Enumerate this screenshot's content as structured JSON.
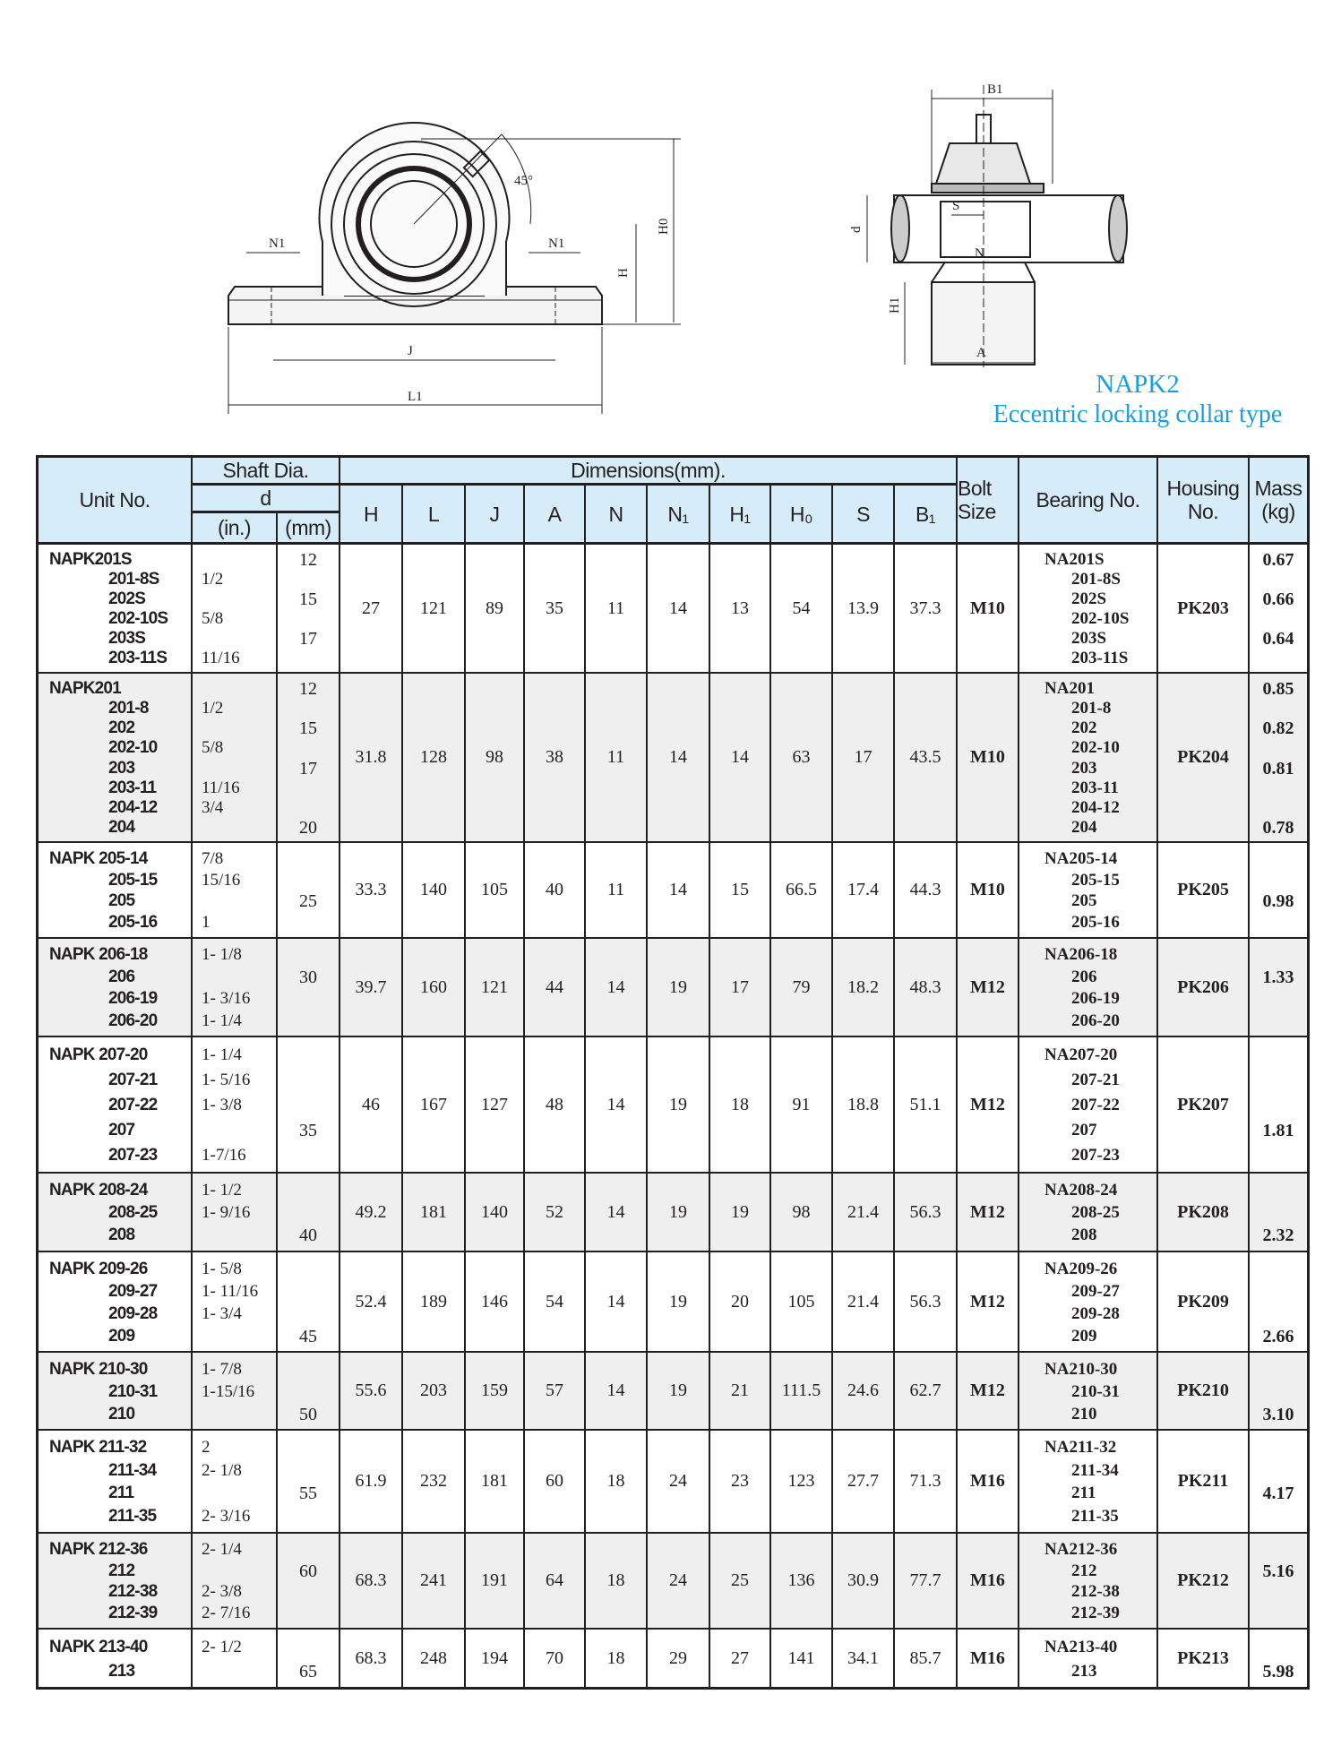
{
  "title": {
    "model": "NAPK2",
    "subtitle": "Eccentric locking collar type"
  },
  "drawings": {
    "front": {
      "n1_left": "N1",
      "n1_right": "N1",
      "angle": "45°",
      "j": "J",
      "l1": "L1",
      "h": "H",
      "h0": "H0"
    },
    "side": {
      "b1": "B1",
      "s": "S",
      "d": "d",
      "n": "N",
      "h1": "H1",
      "a": "A"
    }
  },
  "colors": {
    "accent": "#1a9ee0",
    "header_bg": "#d6ecf8",
    "alt_row_bg": "#efefef",
    "border": "#231f20"
  },
  "table": {
    "headers": {
      "unit_no": "Unit No.",
      "shaft_dia": "Shaft Dia.",
      "d": "d",
      "inch": "(in.)",
      "mm": "(mm)",
      "dimensions": "Dimensions(mm).",
      "dims": [
        "H",
        "L",
        "J",
        "A",
        "N",
        "N₁",
        "H₁",
        "H₀",
        "S",
        "B₁"
      ],
      "bolt": "Bolt Size",
      "bearing": "Bearing No.",
      "housing": "Housing No.",
      "mass": "Mass (kg)"
    },
    "rows": [
      {
        "units": [
          "NAPK201S",
          "201-8S",
          "202S",
          "202-10S",
          "203S",
          "203-11S"
        ],
        "inch": [
          "",
          "1/2",
          "",
          "5/8",
          "",
          "11/16"
        ],
        "mm": [
          "12",
          "",
          "15",
          "",
          "17",
          ""
        ],
        "dims": [
          "27",
          "121",
          "89",
          "35",
          "11",
          "14",
          "13",
          "54",
          "13.9",
          "37.3"
        ],
        "bolt": "M10",
        "bearing": [
          "NA201S",
          "201-8S",
          "202S",
          "202-10S",
          "203S",
          "203-11S"
        ],
        "housing": "PK203",
        "mass": [
          "0.67",
          "",
          "0.66",
          "",
          "0.64",
          ""
        ]
      },
      {
        "units": [
          "NAPK201",
          "201-8",
          "202",
          "202-10",
          "203",
          "203-11",
          "204-12",
          "204"
        ],
        "inch": [
          "",
          "1/2",
          "",
          "5/8",
          "",
          "11/16",
          "3/4",
          ""
        ],
        "mm": [
          "12",
          "",
          "15",
          "",
          "17",
          "",
          "",
          "20"
        ],
        "dims": [
          "31.8",
          "128",
          "98",
          "38",
          "11",
          "14",
          "14",
          "63",
          "17",
          "43.5"
        ],
        "bolt": "M10",
        "bearing": [
          "NA201",
          "201-8",
          "202",
          "202-10",
          "203",
          "203-11",
          "204-12",
          "204"
        ],
        "housing": "PK204",
        "mass": [
          "0.85",
          "",
          "0.82",
          "",
          "0.81",
          "",
          "",
          "0.78"
        ]
      },
      {
        "units": [
          "NAPK 205-14",
          "205-15",
          "205",
          "205-16"
        ],
        "inch": [
          "7/8",
          "15/16",
          "",
          "1"
        ],
        "mm": [
          "",
          "",
          "25",
          ""
        ],
        "dims": [
          "33.3",
          "140",
          "105",
          "40",
          "11",
          "14",
          "15",
          "66.5",
          "17.4",
          "44.3"
        ],
        "bolt": "M10",
        "bearing": [
          "NA205-14",
          "205-15",
          "205",
          "205-16"
        ],
        "housing": "PK205",
        "mass": [
          "",
          "",
          "0.98",
          ""
        ]
      },
      {
        "units": [
          "NAPK 206-18",
          "206",
          "206-19",
          "206-20"
        ],
        "inch": [
          "1- 1/8",
          "",
          "1- 3/16",
          "1- 1/4"
        ],
        "mm": [
          "",
          "30",
          "",
          ""
        ],
        "dims": [
          "39.7",
          "160",
          "121",
          "44",
          "14",
          "19",
          "17",
          "79",
          "18.2",
          "48.3"
        ],
        "bolt": "M12",
        "bearing": [
          "NA206-18",
          "206",
          "206-19",
          "206-20"
        ],
        "housing": "PK206",
        "mass": [
          "",
          "1.33",
          "",
          ""
        ]
      },
      {
        "units": [
          "NAPK 207-20",
          "207-21",
          "207-22",
          "207",
          "207-23"
        ],
        "inch": [
          "1- 1/4",
          "1- 5/16",
          "1- 3/8",
          "",
          "1-7/16"
        ],
        "mm": [
          "",
          "",
          "",
          "35",
          ""
        ],
        "dims": [
          "46",
          "167",
          "127",
          "48",
          "14",
          "19",
          "18",
          "91",
          "18.8",
          "51.1"
        ],
        "bolt": "M12",
        "bearing": [
          "NA207-20",
          "207-21",
          "207-22",
          "207",
          "207-23"
        ],
        "housing": "PK207",
        "mass": [
          "",
          "",
          "",
          "1.81",
          ""
        ]
      },
      {
        "units": [
          "NAPK 208-24",
          "208-25",
          "208"
        ],
        "inch": [
          "1- 1/2",
          "1- 9/16",
          ""
        ],
        "mm": [
          "",
          "",
          "40"
        ],
        "dims": [
          "49.2",
          "181",
          "140",
          "52",
          "14",
          "19",
          "19",
          "98",
          "21.4",
          "56.3"
        ],
        "bolt": "M12",
        "bearing": [
          "NA208-24",
          "208-25",
          "208"
        ],
        "housing": "PK208",
        "mass": [
          "",
          "",
          "2.32"
        ]
      },
      {
        "units": [
          "NAPK 209-26",
          "209-27",
          "209-28",
          "209"
        ],
        "inch": [
          "1- 5/8",
          "1- 11/16",
          "1- 3/4",
          ""
        ],
        "mm": [
          "",
          "",
          "",
          "45"
        ],
        "dims": [
          "52.4",
          "189",
          "146",
          "54",
          "14",
          "19",
          "20",
          "105",
          "21.4",
          "56.3"
        ],
        "bolt": "M12",
        "bearing": [
          "NA209-26",
          "209-27",
          "209-28",
          "209"
        ],
        "housing": "PK209",
        "mass": [
          "",
          "",
          "",
          "2.66"
        ]
      },
      {
        "units": [
          "NAPK 210-30",
          "210-31",
          "210"
        ],
        "inch": [
          "1- 7/8",
          "1-15/16",
          ""
        ],
        "mm": [
          "",
          "",
          "50"
        ],
        "dims": [
          "55.6",
          "203",
          "159",
          "57",
          "14",
          "19",
          "21",
          "111.5",
          "24.6",
          "62.7"
        ],
        "bolt": "M12",
        "bearing": [
          "NA210-30",
          "210-31",
          "210"
        ],
        "housing": "PK210",
        "mass": [
          "",
          "",
          "3.10"
        ]
      },
      {
        "units": [
          "NAPK 211-32",
          "211-34",
          "211",
          "211-35"
        ],
        "inch": [
          "2",
          "2- 1/8",
          "",
          "2- 3/16"
        ],
        "mm": [
          "",
          "",
          "55",
          ""
        ],
        "dims": [
          "61.9",
          "232",
          "181",
          "60",
          "18",
          "24",
          "23",
          "123",
          "27.7",
          "71.3"
        ],
        "bolt": "M16",
        "bearing": [
          "NA211-32",
          "211-34",
          "211",
          "211-35"
        ],
        "housing": "PK211",
        "mass": [
          "",
          "",
          "4.17",
          ""
        ]
      },
      {
        "units": [
          "NAPK 212-36",
          "212",
          "212-38",
          "212-39"
        ],
        "inch": [
          "2- 1/4",
          "",
          "2- 3/8",
          "2- 7/16"
        ],
        "mm": [
          "",
          "60",
          "",
          ""
        ],
        "dims": [
          "68.3",
          "241",
          "191",
          "64",
          "18",
          "24",
          "25",
          "136",
          "30.9",
          "77.7"
        ],
        "bolt": "M16",
        "bearing": [
          "NA212-36",
          "212",
          "212-38",
          "212-39"
        ],
        "housing": "PK212",
        "mass": [
          "",
          "5.16",
          "",
          ""
        ]
      },
      {
        "units": [
          "NAPK 213-40",
          "213"
        ],
        "inch": [
          "2- 1/2",
          ""
        ],
        "mm": [
          "",
          "65"
        ],
        "dims": [
          "68.3",
          "248",
          "194",
          "70",
          "18",
          "29",
          "27",
          "141",
          "34.1",
          "85.7"
        ],
        "bolt": "M16",
        "bearing": [
          "NA213-40",
          "213"
        ],
        "housing": "PK213",
        "mass": [
          "",
          "5.98"
        ]
      }
    ]
  }
}
